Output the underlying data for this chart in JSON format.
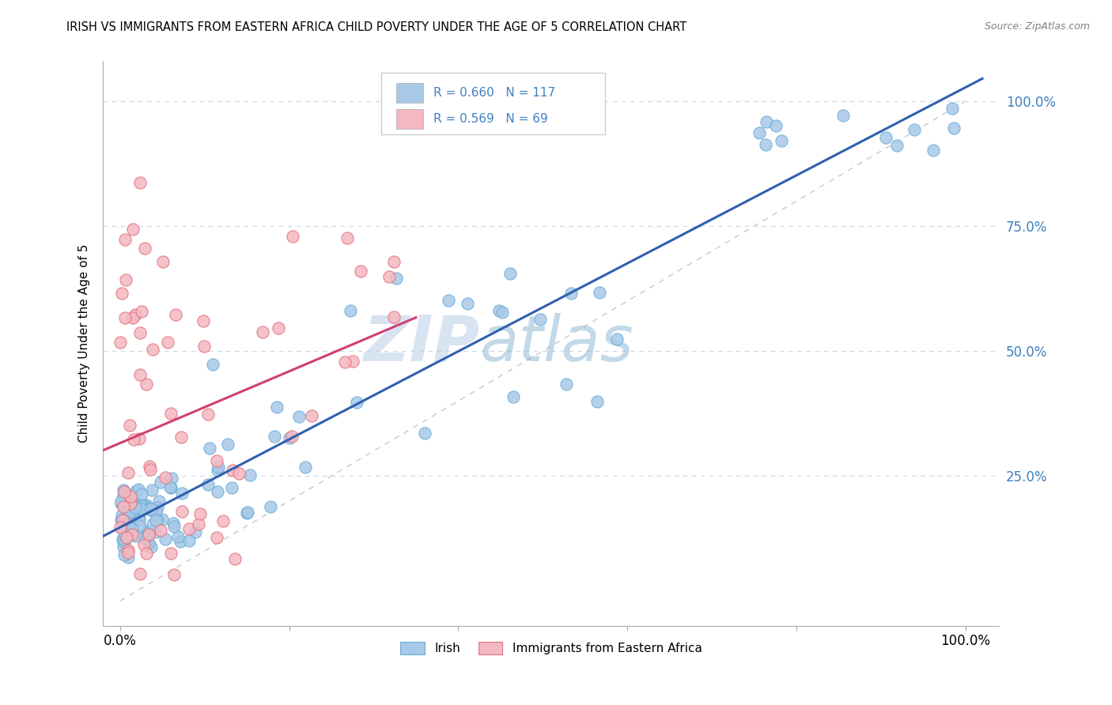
{
  "title": "IRISH VS IMMIGRANTS FROM EASTERN AFRICA CHILD POVERTY UNDER THE AGE OF 5 CORRELATION CHART",
  "source": "Source: ZipAtlas.com",
  "ylabel": "Child Poverty Under the Age of 5",
  "irish_color": "#a8c8e8",
  "irish_edge_color": "#6baed6",
  "eastern_africa_color": "#f4b8c0",
  "eastern_africa_edge_color": "#e07080",
  "irish_line_color": "#3060b0",
  "eastern_africa_line_color": "#d04070",
  "irish_R": 0.66,
  "irish_N": 117,
  "eastern_africa_R": 0.569,
  "eastern_africa_N": 69,
  "watermark_zip": "ZIP",
  "watermark_atlas": "atlas",
  "legend_irish": "Irish",
  "legend_eastern_africa": "Immigrants from Eastern Africa",
  "right_tick_color": "#4080c0",
  "grid_color": "#c8d8e8",
  "ref_line_color": "#c8c8c8"
}
